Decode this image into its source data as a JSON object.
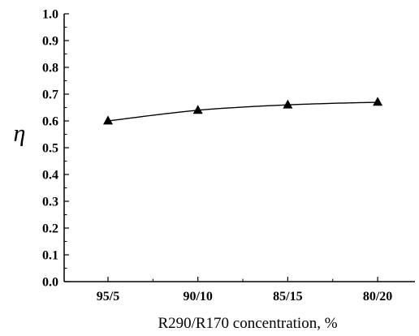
{
  "chart_data": {
    "type": "line",
    "xlabel": "R290/R170 concentration, %",
    "ylabel": "η",
    "categories": [
      "95/5",
      "90/10",
      "85/15",
      "80/20"
    ],
    "series": [
      {
        "values": [
          0.6,
          0.64,
          0.66,
          0.67
        ],
        "marker": "triangle",
        "color": "#000000"
      }
    ],
    "ylim": [
      0.0,
      1.0
    ],
    "yticks": [
      "0.0",
      "0.1",
      "0.2",
      "0.3",
      "0.4",
      "0.5",
      "0.6",
      "0.7",
      "0.8",
      "0.9",
      "1.0"
    ],
    "grid": false
  }
}
